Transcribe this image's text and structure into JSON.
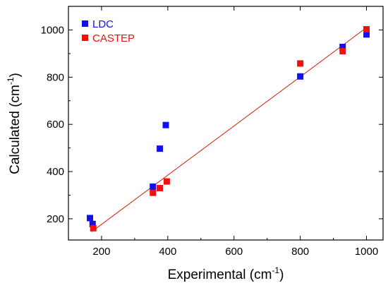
{
  "chart_data": {
    "type": "scatter",
    "xlabel": "Experimental (cm",
    "xlabel_sup": "-1",
    "xlabel_end": ")",
    "ylabel": "Calculated (cm",
    "ylabel_sup": "-1",
    "ylabel_end": ")",
    "xlim": [
      100,
      1050
    ],
    "ylim": [
      110,
      1100
    ],
    "xticks": [
      200,
      400,
      600,
      800,
      1000
    ],
    "yticks": [
      200,
      400,
      600,
      800,
      1000
    ],
    "xtick_labels": [
      "200",
      "400",
      "600",
      "800",
      "1000"
    ],
    "ytick_labels": [
      "200",
      "400",
      "600",
      "800",
      "1000"
    ],
    "legend_position": "top-left",
    "series": [
      {
        "name": "LDC",
        "color": "#1010f0",
        "points": [
          [
            165,
            203
          ],
          [
            173,
            178
          ],
          [
            355,
            336
          ],
          [
            376,
            497
          ],
          [
            394,
            597
          ],
          [
            800,
            803
          ],
          [
            928,
            928
          ],
          [
            1000,
            981
          ]
        ]
      },
      {
        "name": "CASTEP",
        "color": "#f01010",
        "points": [
          [
            175,
            160
          ],
          [
            355,
            310
          ],
          [
            376,
            330
          ],
          [
            397,
            358
          ],
          [
            800,
            858
          ],
          [
            928,
            910
          ],
          [
            1000,
            1003
          ]
        ]
      }
    ],
    "fit_line": {
      "color": "#cc2200",
      "x": [
        170,
        1000
      ],
      "y": [
        145,
        1010
      ]
    }
  }
}
